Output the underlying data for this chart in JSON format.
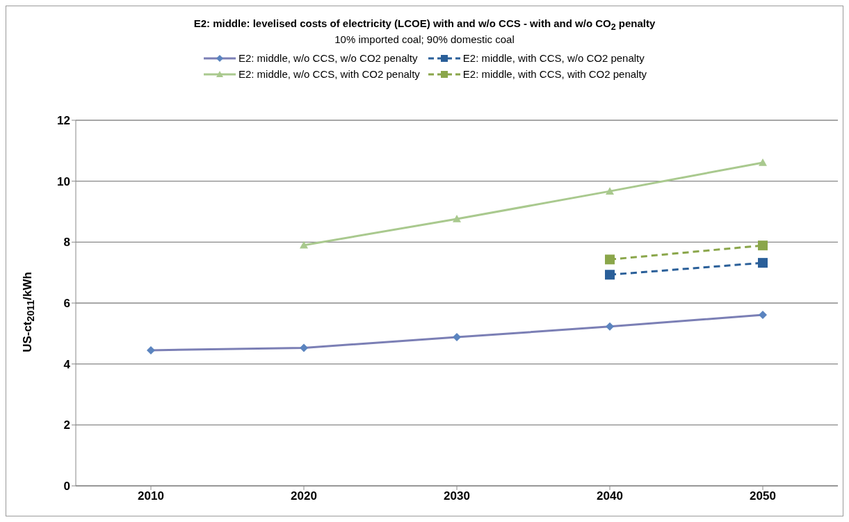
{
  "chart_data": {
    "type": "line",
    "title": "E2: middle: levelised costs of electricity (LCOE) with and w/o CCS - with and w/o CO$_{2}$ penalty",
    "subtitle": "10% imported coal; 90% domestic coal",
    "ylabel": "US-ct$_{2011}$/kWh",
    "categories": [
      "2010",
      "2020",
      "2030",
      "2040",
      "2050"
    ],
    "series": [
      {
        "name": "E2: middle, w/o CCS, w/o CO2 penalty",
        "color": "#7b7fb5",
        "marker": "diamond",
        "line_style": "solid",
        "values": [
          4.45,
          4.53,
          4.88,
          5.23,
          5.61
        ]
      },
      {
        "name": "E2: middle, with CCS, w/o CO2 penalty",
        "color": "#2a5f99",
        "marker": "square",
        "line_style": "dashed",
        "values": [
          null,
          null,
          null,
          6.93,
          7.32
        ]
      },
      {
        "name": "E2: middle, w/o CCS, with CO2 penalty",
        "color": "#a9c98e",
        "marker": "triangle",
        "line_style": "solid",
        "values": [
          null,
          7.9,
          8.76,
          9.67,
          10.61
        ]
      },
      {
        "name": "E2: middle, with CCS, with CO2 penalty",
        "color": "#8aa64a",
        "marker": "square",
        "line_style": "dashed",
        "values": [
          null,
          null,
          null,
          7.43,
          7.89
        ]
      }
    ],
    "ylim": [
      0,
      12
    ],
    "yticks": [
      0,
      2,
      4,
      6,
      8,
      10,
      12
    ],
    "grid": "y",
    "legend": "top"
  }
}
